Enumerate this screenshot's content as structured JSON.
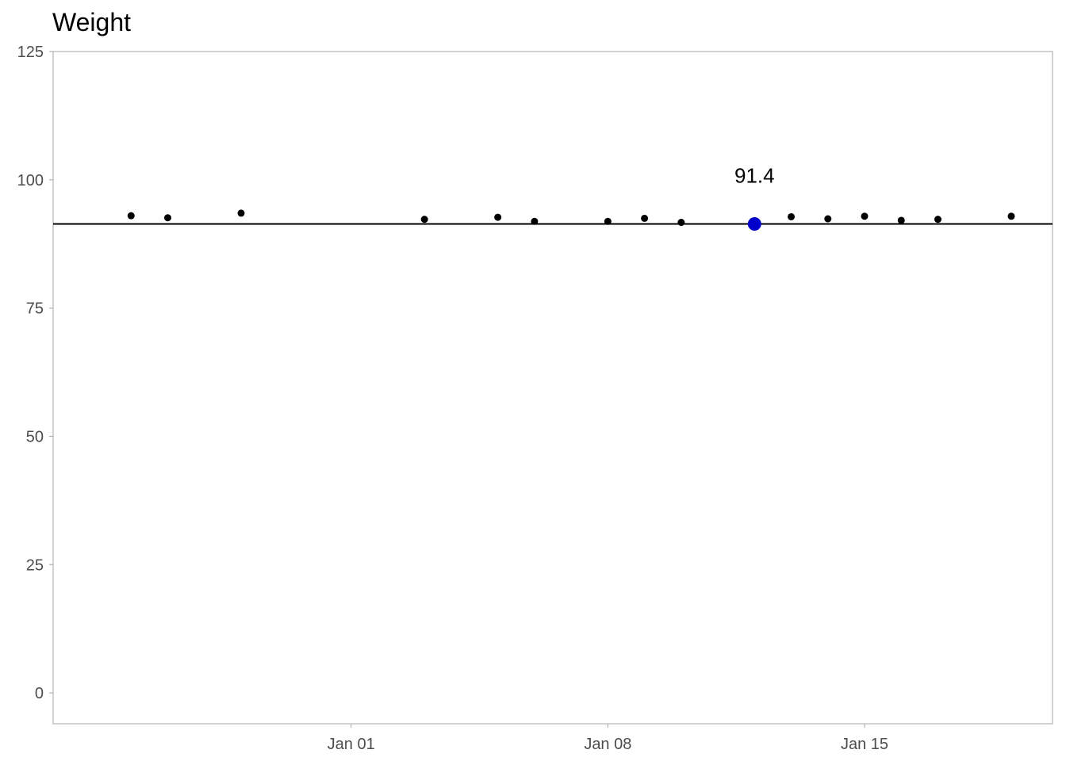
{
  "chart_data": {
    "type": "scatter",
    "title": "Weight",
    "xlabel": "",
    "ylabel": "",
    "xlim": [
      "2023-12-25",
      "2024-01-19"
    ],
    "ylim": [
      -6,
      125
    ],
    "x_ticks": [
      "2024-01-01",
      "2024-01-08",
      "2024-01-15"
    ],
    "x_tick_labels": [
      "Jan 01",
      "Jan 08",
      "Jan 15"
    ],
    "y_ticks": [
      0,
      25,
      50,
      75,
      100,
      125
    ],
    "y_tick_labels": [
      "0",
      "25",
      "50",
      "75",
      "100",
      "125"
    ],
    "grid": false,
    "reference_line": {
      "y": 91.4,
      "color": "#000000"
    },
    "highlight": {
      "x": "2024-01-12",
      "y": 91.4,
      "label": "91.4",
      "color": "#0000cc"
    },
    "points": [
      {
        "x": "2023-12-26",
        "y": 93.0
      },
      {
        "x": "2023-12-27",
        "y": 92.6
      },
      {
        "x": "2023-12-29",
        "y": 93.5
      },
      {
        "x": "2024-01-03",
        "y": 92.3
      },
      {
        "x": "2024-01-05",
        "y": 92.7
      },
      {
        "x": "2024-01-06",
        "y": 91.9
      },
      {
        "x": "2024-01-08",
        "y": 91.9
      },
      {
        "x": "2024-01-09",
        "y": 92.5
      },
      {
        "x": "2024-01-10",
        "y": 91.7
      },
      {
        "x": "2024-01-12",
        "y": 91.4
      },
      {
        "x": "2024-01-13",
        "y": 92.8
      },
      {
        "x": "2024-01-14",
        "y": 92.4
      },
      {
        "x": "2024-01-15",
        "y": 92.9
      },
      {
        "x": "2024-01-16",
        "y": 92.1
      },
      {
        "x": "2024-01-17",
        "y": 92.3
      },
      {
        "x": "2024-01-19",
        "y": 92.9
      }
    ],
    "colors": {
      "point": "#000000",
      "highlight": "#0000cc",
      "axis": "#b3b3b3",
      "tick_text": "#4d4d4d"
    }
  }
}
